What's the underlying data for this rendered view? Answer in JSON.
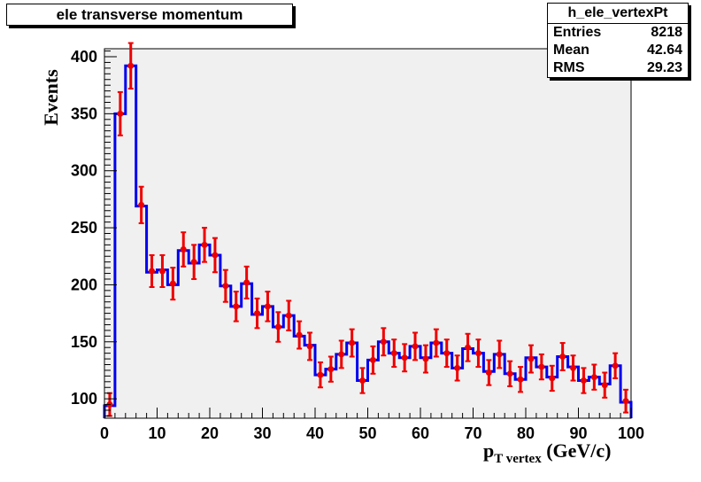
{
  "title": "ele transverse momentum",
  "stats": {
    "name": "h_ele_vertexPt",
    "rows": [
      {
        "label": "Entries",
        "value": "8218"
      },
      {
        "label": "Mean",
        "value": "42.64"
      },
      {
        "label": "RMS",
        "value": "29.23"
      }
    ]
  },
  "axes": {
    "ylabel": "Events",
    "xlabel_main": "p",
    "xlabel_sub": "T vertex",
    "xlabel_unit": " (GeV/c)"
  },
  "colors": {
    "frame_bg": "#f0f0f0",
    "histogram": "#0000ee",
    "markers": "#ee0000"
  },
  "chart_data": {
    "type": "line",
    "style": "step-histogram with error-bar markers",
    "xlim": [
      0,
      100
    ],
    "ylim": [
      83,
      407
    ],
    "bin_width": 2,
    "x_ticks": [
      0,
      10,
      20,
      30,
      40,
      50,
      60,
      70,
      80,
      90,
      100
    ],
    "y_ticks": [
      100,
      150,
      200,
      250,
      300,
      350,
      400
    ],
    "x_tick_labels": [
      "0",
      "10",
      "20",
      "30",
      "40",
      "50",
      "60",
      "70",
      "80",
      "90",
      "100"
    ],
    "y_tick_labels": [
      "100",
      "150",
      "200",
      "250",
      "300",
      "350",
      "400"
    ],
    "grid": false,
    "series": [
      {
        "style": "histogram",
        "x": [
          1,
          3,
          5,
          7,
          9,
          11,
          13,
          15,
          17,
          19,
          21,
          23,
          25,
          27,
          29,
          31,
          33,
          35,
          37,
          39,
          41,
          43,
          45,
          47,
          49,
          51,
          53,
          55,
          57,
          59,
          61,
          63,
          65,
          67,
          69,
          71,
          73,
          75,
          77,
          79,
          81,
          83,
          85,
          87,
          89,
          91,
          93,
          95,
          97,
          99
        ],
        "values": [
          94,
          350,
          392,
          269,
          211,
          213,
          200,
          230,
          219,
          235,
          226,
          199,
          181,
          201,
          174,
          181,
          163,
          173,
          155,
          147,
          121,
          126,
          139,
          149,
          116,
          134,
          150,
          140,
          136,
          146,
          136,
          149,
          140,
          127,
          144,
          140,
          124,
          139,
          122,
          117,
          136,
          128,
          119,
          137,
          128,
          116,
          119,
          113,
          129,
          97
        ]
      },
      {
        "style": "data points",
        "x": [
          1,
          3,
          5,
          7,
          9,
          11,
          13,
          15,
          17,
          19,
          21,
          23,
          25,
          27,
          29,
          31,
          33,
          35,
          37,
          39,
          41,
          43,
          45,
          47,
          49,
          51,
          53,
          55,
          57,
          59,
          61,
          63,
          65,
          67,
          69,
          71,
          73,
          75,
          77,
          79,
          81,
          83,
          85,
          87,
          89,
          91,
          93,
          95,
          97,
          99
        ],
        "values": [
          95,
          350,
          392,
          270,
          212,
          212,
          201,
          231,
          220,
          235,
          226,
          199,
          181,
          202,
          175,
          181,
          163,
          173,
          156,
          146,
          121,
          126,
          139,
          149,
          116,
          134,
          150,
          140,
          136,
          146,
          135,
          149,
          140,
          127,
          145,
          140,
          123,
          139,
          122,
          117,
          135,
          128,
          118,
          137,
          127,
          116,
          119,
          112,
          129,
          98
        ],
        "errors": [
          10,
          19,
          20,
          16,
          14,
          14,
          14,
          15,
          15,
          15,
          15,
          14,
          13,
          14,
          13,
          13,
          13,
          13,
          12,
          12,
          11,
          11,
          12,
          12,
          11,
          12,
          12,
          12,
          12,
          12,
          12,
          12,
          12,
          11,
          12,
          12,
          11,
          12,
          11,
          11,
          12,
          11,
          11,
          12,
          11,
          11,
          11,
          11,
          11,
          10
        ]
      }
    ]
  }
}
